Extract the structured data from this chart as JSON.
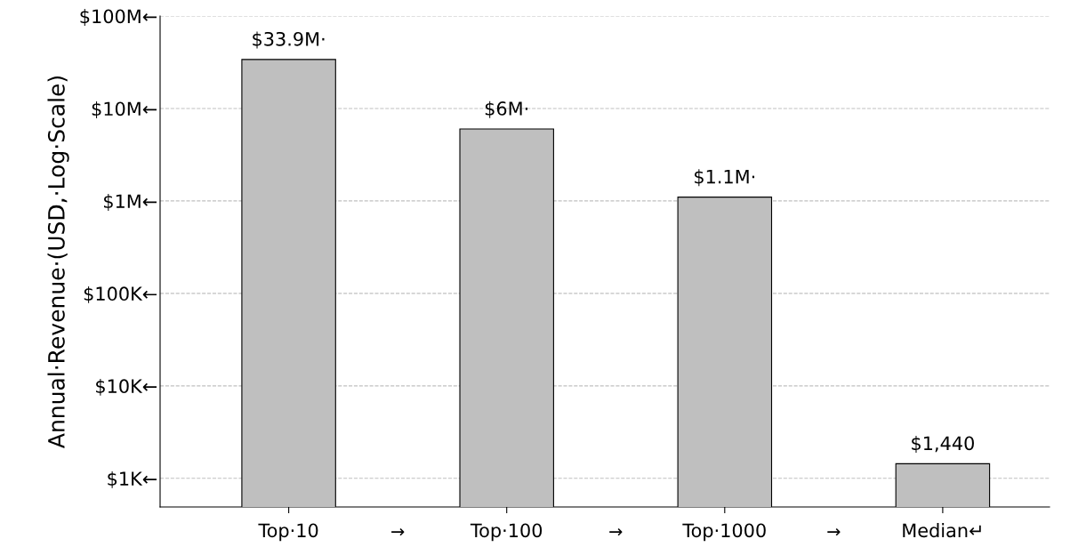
{
  "chart_data": {
    "type": "bar",
    "ylabel": "Annual·Revenue·(USD,·Log·Scale)",
    "categories": [
      "Top·10",
      "Top·100",
      "Top·1000",
      "Median↵"
    ],
    "values": [
      33900000,
      6000000,
      1100000,
      1440
    ],
    "value_labels": [
      "$33.9M·",
      "$6M·",
      "$1.1M·",
      "$1,440"
    ],
    "color": "#bfbfbf",
    "log": true,
    "ylim": [
      490,
      100000000
    ],
    "yticks": [
      {
        "value": 1000,
        "label": "$1K←"
      },
      {
        "value": 10000,
        "label": "$10K←"
      },
      {
        "value": 100000,
        "label": "$100K←"
      },
      {
        "value": 1000000,
        "label": "$1M←"
      },
      {
        "value": 10000000,
        "label": "$10M←"
      },
      {
        "value": 100000000,
        "label": "$100M←"
      }
    ],
    "grid": "y",
    "annotations": [
      "→",
      "→",
      "→"
    ]
  }
}
